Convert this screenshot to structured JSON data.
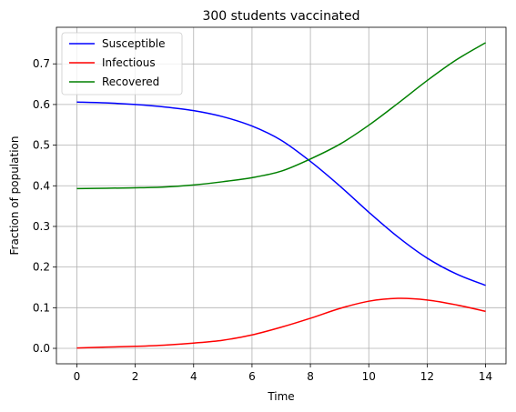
{
  "chart_data": {
    "type": "line",
    "title": "300 students vaccinated",
    "xlabel": "Time",
    "ylabel": "Fraction of population",
    "xlim": [
      -0.7,
      14.7
    ],
    "ylim": [
      -0.038,
      0.79
    ],
    "xticks": [
      0,
      2,
      4,
      6,
      8,
      10,
      12,
      14
    ],
    "xtick_labels": [
      "0",
      "2",
      "4",
      "6",
      "8",
      "10",
      "12",
      "14"
    ],
    "yticks": [
      0.0,
      0.1,
      0.2,
      0.3,
      0.4,
      0.5,
      0.6,
      0.7
    ],
    "ytick_labels": [
      "0.0",
      "0.1",
      "0.2",
      "0.3",
      "0.4",
      "0.5",
      "0.6",
      "0.7"
    ],
    "grid": true,
    "legend_position": "top-left",
    "x": [
      0,
      1,
      2,
      3,
      4,
      5,
      6,
      7,
      8,
      9,
      10,
      11,
      12,
      13,
      14
    ],
    "series": [
      {
        "name": "Susceptible",
        "color": "#0000ff",
        "values": [
          0.606,
          0.604,
          0.6,
          0.594,
          0.585,
          0.57,
          0.547,
          0.512,
          0.46,
          0.4,
          0.335,
          0.274,
          0.222,
          0.183,
          0.155
        ]
      },
      {
        "name": "Infectious",
        "color": "#ff0000",
        "values": [
          0.001,
          0.003,
          0.005,
          0.008,
          0.013,
          0.02,
          0.033,
          0.052,
          0.074,
          0.098,
          0.116,
          0.123,
          0.119,
          0.107,
          0.091
        ]
      },
      {
        "name": "Recovered",
        "color": "#008000",
        "values": [
          0.393,
          0.394,
          0.395,
          0.397,
          0.402,
          0.41,
          0.42,
          0.436,
          0.466,
          0.502,
          0.549,
          0.603,
          0.659,
          0.71,
          0.752
        ]
      }
    ]
  }
}
